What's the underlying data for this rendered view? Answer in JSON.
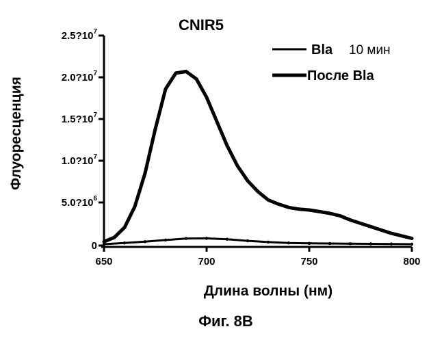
{
  "chart_data": {
    "type": "line",
    "title": "CNIR5",
    "xlabel": "Длина волны (нм)",
    "ylabel": "Флуоресценция",
    "xlim": [
      650,
      800
    ],
    "ylim": [
      0,
      25000000
    ],
    "x_ticks": [
      {
        "value": 650,
        "label": "650"
      },
      {
        "value": 700,
        "label": "700"
      },
      {
        "value": 750,
        "label": "750"
      },
      {
        "value": 800,
        "label": "800"
      }
    ],
    "y_ticks": [
      {
        "value": 0,
        "label": "0",
        "exp": ""
      },
      {
        "value": 5000000,
        "label": "5.0?10",
        "exp": "6"
      },
      {
        "value": 10000000,
        "label": "1.0?10",
        "exp": "7"
      },
      {
        "value": 15000000,
        "label": "1.5?10",
        "exp": "7"
      },
      {
        "value": 20000000,
        "label": "2.0?10",
        "exp": "7"
      },
      {
        "value": 25000000,
        "label": "2.5?10",
        "exp": "7"
      }
    ],
    "grid": false,
    "legend_position": "top-right",
    "series": [
      {
        "name": "Bla",
        "name_suffix": "10 мин",
        "color": "#000000",
        "x": [
          650,
          660,
          670,
          680,
          690,
          700,
          710,
          720,
          730,
          740,
          750,
          760,
          770,
          780,
          790,
          800
        ],
        "y": [
          0,
          150000,
          300000,
          500000,
          680000,
          700000,
          600000,
          400000,
          250000,
          150000,
          100000,
          80000,
          60000,
          40000,
          20000,
          0
        ]
      },
      {
        "name": "После Bla",
        "color": "#000000",
        "x": [
          650,
          655,
          660,
          665,
          670,
          675,
          680,
          685,
          690,
          695,
          700,
          705,
          710,
          715,
          720,
          725,
          730,
          735,
          740,
          745,
          750,
          755,
          760,
          765,
          770,
          775,
          780,
          785,
          790,
          795,
          800
        ],
        "y": [
          300000,
          800000,
          2000000,
          4500000,
          8500000,
          13800000,
          18600000,
          20500000,
          20700000,
          19800000,
          17600000,
          14700000,
          11800000,
          9400000,
          7600000,
          6300000,
          5300000,
          4800000,
          4400000,
          4200000,
          4100000,
          3900000,
          3700000,
          3400000,
          2900000,
          2500000,
          2100000,
          1700000,
          1300000,
          1000000,
          700000
        ]
      }
    ]
  },
  "caption": "Фиг. 8B"
}
